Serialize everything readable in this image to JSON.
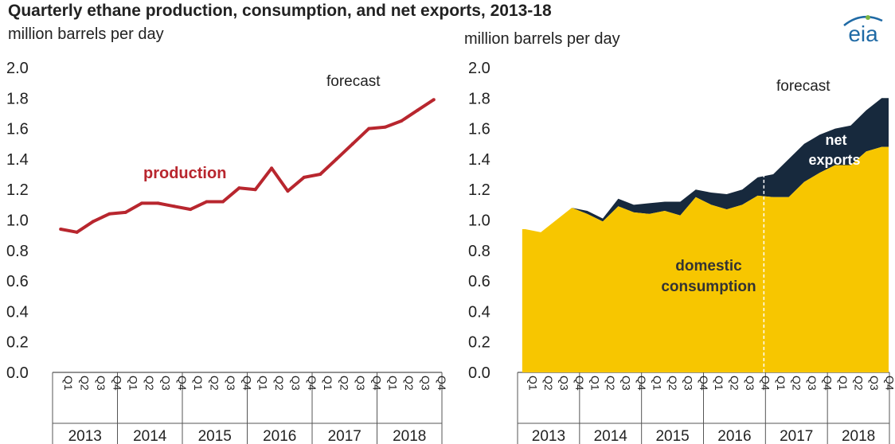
{
  "title": "Quarterly ethane production, consumption, and net exports, 2013-18",
  "logo_text": "eia",
  "colors": {
    "production": "#b8262e",
    "consumption": "#f7c600",
    "exports": "#17293d",
    "axis": "#555555",
    "text": "#222222",
    "logo_blue": "#1f6aa5",
    "logo_green": "#7bb542"
  },
  "chart_data": [
    {
      "type": "line",
      "ylabel": "million barrels per day",
      "ylim": [
        0,
        2.0
      ],
      "yticks": [
        0.0,
        0.2,
        0.4,
        0.6,
        0.8,
        1.0,
        1.2,
        1.4,
        1.6,
        1.8,
        2.0
      ],
      "ytick_labels": [
        "0.0",
        "0.2",
        "0.4",
        "0.6",
        "0.8",
        "1.0",
        "1.2",
        "1.4",
        "1.6",
        "1.8",
        "2.0"
      ],
      "years": [
        "2013",
        "2014",
        "2015",
        "2016",
        "2017",
        "2018"
      ],
      "quarters": [
        "Q1",
        "Q2",
        "Q3",
        "Q4"
      ],
      "forecast_label": "forecast",
      "forecast_start_index": 16,
      "series": [
        {
          "name": "production",
          "values": [
            0.94,
            0.92,
            0.99,
            1.04,
            1.05,
            1.11,
            1.11,
            1.09,
            1.07,
            1.12,
            1.12,
            1.21,
            1.2,
            1.34,
            1.19,
            1.28,
            1.3,
            1.4,
            1.5,
            1.6,
            1.61,
            1.65,
            1.72,
            1.79
          ]
        }
      ]
    },
    {
      "type": "area",
      "ylabel": "million barrels per day",
      "ylim": [
        0,
        2.0
      ],
      "yticks": [
        0.0,
        0.2,
        0.4,
        0.6,
        0.8,
        1.0,
        1.2,
        1.4,
        1.6,
        1.8,
        2.0
      ],
      "ytick_labels": [
        "0.0",
        "0.2",
        "0.4",
        "0.6",
        "0.8",
        "1.0",
        "1.2",
        "1.4",
        "1.6",
        "1.8",
        "2.0"
      ],
      "years": [
        "2013",
        "2014",
        "2015",
        "2016",
        "2017",
        "2018"
      ],
      "quarters": [
        "Q1",
        "Q2",
        "Q3",
        "Q4"
      ],
      "forecast_label": "forecast",
      "forecast_start_index": 16,
      "stacked": true,
      "series": [
        {
          "name": "domestic consumption",
          "label_lines": [
            "domestic",
            "consumption"
          ],
          "values": [
            0.94,
            0.92,
            1.0,
            1.08,
            1.04,
            0.99,
            1.09,
            1.05,
            1.04,
            1.06,
            1.03,
            1.15,
            1.1,
            1.07,
            1.1,
            1.16,
            1.15,
            1.15,
            1.25,
            1.31,
            1.36,
            1.36,
            1.45,
            1.48
          ]
        },
        {
          "name": "net exports",
          "label_lines": [
            "net",
            "exports"
          ],
          "values": [
            0.0,
            0.0,
            0.0,
            0.0,
            0.02,
            0.02,
            0.05,
            0.05,
            0.07,
            0.06,
            0.09,
            0.05,
            0.08,
            0.1,
            0.1,
            0.12,
            0.15,
            0.25,
            0.25,
            0.25,
            0.24,
            0.26,
            0.27,
            0.32
          ]
        }
      ]
    }
  ]
}
